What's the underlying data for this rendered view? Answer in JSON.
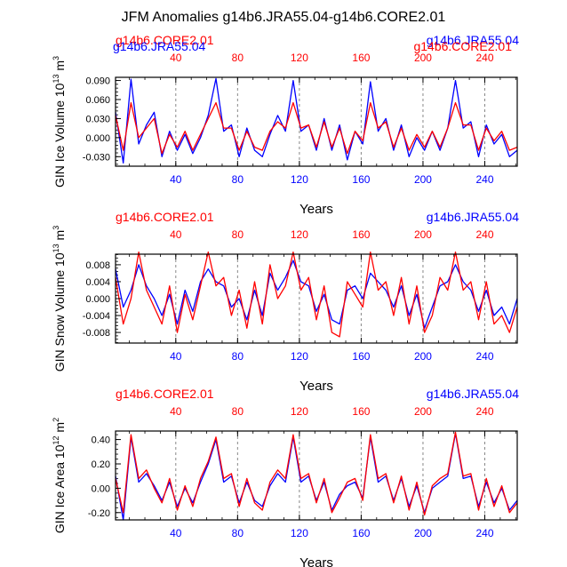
{
  "figure": {
    "title": "JFM Anomalies g14b6.JRA55.04-g14b6.CORE2.01",
    "xlabel": "Years"
  },
  "colors": {
    "jra": "#0000ff",
    "core": "#ff0000",
    "axis": "#000000",
    "grid": "#888888"
  },
  "chart_data": [
    {
      "type": "line",
      "ylabel_main": "GIN Ice Volume 10",
      "ylabel_exp": "13",
      "ylabel_unit": " m",
      "ylabel_unit_exp": "3",
      "xlabel": "Years",
      "legend_left": "g14b6.CORE2.01",
      "legend_right": "g14b6.JRA55.04",
      "legend_left_2": "g14b6.JRA55.04",
      "legend_right_2": "g14b6.CORE2.01",
      "xlim": [
        1,
        261
      ],
      "ylim": [
        -0.045,
        0.095
      ],
      "yticks": [
        -0.03,
        0.0,
        0.03,
        0.06,
        0.09
      ],
      "ytick_labels": [
        "-0.030",
        "0.000",
        "0.030",
        "0.060",
        "0.090"
      ],
      "xticks": [
        40,
        80,
        120,
        160,
        200,
        240
      ],
      "xtick_labels": [
        "40",
        "80",
        "120",
        "160",
        "200",
        "240"
      ],
      "grid": "vertical dashed at x ticks",
      "series": [
        {
          "name": "g14b6.JRA55.04",
          "color": "#0000ff",
          "x": [
            1,
            6,
            11,
            16,
            21,
            26,
            31,
            36,
            41,
            46,
            51,
            56,
            61,
            66,
            71,
            76,
            81,
            86,
            91,
            96,
            101,
            106,
            111,
            116,
            121,
            126,
            131,
            136,
            141,
            146,
            151,
            156,
            161,
            166,
            171,
            176,
            181,
            186,
            191,
            196,
            201,
            206,
            211,
            216,
            221,
            226,
            231,
            236,
            241,
            246,
            251,
            256,
            261
          ],
          "values": [
            0.04,
            -0.04,
            0.092,
            -0.01,
            0.02,
            0.04,
            -0.03,
            0.01,
            -0.02,
            0.005,
            -0.025,
            0.0,
            0.035,
            0.093,
            0.01,
            0.02,
            -0.03,
            0.015,
            -0.02,
            -0.03,
            0.005,
            0.035,
            0.01,
            0.09,
            0.01,
            0.02,
            -0.02,
            0.03,
            -0.02,
            0.02,
            -0.035,
            0.01,
            -0.01,
            0.088,
            0.01,
            0.03,
            -0.02,
            0.02,
            -0.03,
            0.0,
            -0.02,
            0.01,
            -0.02,
            0.015,
            0.09,
            0.015,
            0.025,
            -0.03,
            0.02,
            -0.01,
            0.005,
            -0.03,
            -0.02
          ]
        },
        {
          "name": "g14b6.CORE2.01",
          "color": "#ff0000",
          "x": [
            1,
            6,
            11,
            16,
            21,
            26,
            31,
            36,
            41,
            46,
            51,
            56,
            61,
            66,
            71,
            76,
            81,
            86,
            91,
            96,
            101,
            106,
            111,
            116,
            121,
            126,
            131,
            136,
            141,
            146,
            151,
            156,
            161,
            166,
            171,
            176,
            181,
            186,
            191,
            196,
            201,
            206,
            211,
            216,
            221,
            226,
            231,
            236,
            241,
            246,
            251,
            256,
            261
          ],
          "values": [
            0.035,
            -0.02,
            0.055,
            0.0,
            0.015,
            0.03,
            -0.025,
            0.005,
            -0.015,
            0.01,
            -0.02,
            0.005,
            0.03,
            0.055,
            0.015,
            0.015,
            -0.02,
            0.01,
            -0.015,
            -0.02,
            0.01,
            0.025,
            0.015,
            0.055,
            0.015,
            0.02,
            -0.015,
            0.025,
            -0.015,
            0.015,
            -0.025,
            0.01,
            -0.005,
            0.055,
            0.015,
            0.025,
            -0.015,
            0.015,
            -0.02,
            0.005,
            -0.015,
            0.01,
            -0.015,
            0.015,
            0.055,
            0.02,
            0.02,
            -0.02,
            0.015,
            -0.005,
            0.01,
            -0.02,
            -0.015
          ]
        }
      ]
    },
    {
      "type": "line",
      "ylabel_main": "GIN Snow Volume 10",
      "ylabel_exp": "13",
      "ylabel_unit": " m",
      "ylabel_unit_exp": "3",
      "xlabel": "Years",
      "legend_left": "g14b6.CORE2.01",
      "legend_right": "g14b6.JRA55.04",
      "xlim": [
        1,
        261
      ],
      "ylim": [
        -0.0105,
        0.0105
      ],
      "yticks": [
        -0.008,
        -0.004,
        0.0,
        0.004,
        0.008
      ],
      "ytick_labels": [
        "-0.008",
        "-0.004",
        "0.000",
        "0.004",
        "0.008"
      ],
      "xticks": [
        40,
        80,
        120,
        160,
        200,
        240
      ],
      "xtick_labels": [
        "40",
        "80",
        "120",
        "160",
        "200",
        "240"
      ],
      "grid": "vertical dashed at x ticks",
      "series": [
        {
          "name": "g14b6.JRA55.04",
          "color": "#0000ff",
          "x": [
            1,
            6,
            11,
            16,
            21,
            26,
            31,
            36,
            41,
            46,
            51,
            56,
            61,
            66,
            71,
            76,
            81,
            86,
            91,
            96,
            101,
            106,
            111,
            116,
            121,
            126,
            131,
            136,
            141,
            146,
            151,
            156,
            161,
            166,
            171,
            176,
            181,
            186,
            191,
            196,
            201,
            206,
            211,
            216,
            221,
            226,
            231,
            236,
            241,
            246,
            251,
            256,
            261
          ],
          "values": [
            0.007,
            -0.002,
            0.002,
            0.008,
            0.003,
            0.0,
            -0.004,
            0.001,
            -0.006,
            0.002,
            -0.003,
            0.004,
            0.007,
            0.004,
            0.003,
            -0.002,
            0.0,
            -0.005,
            0.002,
            -0.004,
            0.006,
            0.002,
            0.005,
            0.009,
            0.004,
            0.003,
            -0.003,
            0.001,
            -0.005,
            -0.006,
            0.002,
            0.003,
            0.0,
            0.006,
            0.004,
            0.002,
            -0.002,
            0.003,
            -0.004,
            0.001,
            -0.007,
            -0.002,
            0.003,
            0.004,
            0.008,
            0.004,
            0.002,
            -0.003,
            0.002,
            -0.004,
            -0.002,
            -0.006,
            0.0
          ]
        },
        {
          "name": "g14b6.CORE2.01",
          "color": "#ff0000",
          "x": [
            1,
            6,
            11,
            16,
            21,
            26,
            31,
            36,
            41,
            46,
            51,
            56,
            61,
            66,
            71,
            76,
            81,
            86,
            91,
            96,
            101,
            106,
            111,
            116,
            121,
            126,
            131,
            136,
            141,
            146,
            151,
            156,
            161,
            166,
            171,
            176,
            181,
            186,
            191,
            196,
            201,
            206,
            211,
            216,
            221,
            226,
            231,
            236,
            241,
            246,
            251,
            256,
            261
          ],
          "values": [
            0.005,
            -0.006,
            0.0,
            0.011,
            0.002,
            -0.002,
            -0.006,
            0.003,
            -0.008,
            0.001,
            -0.005,
            0.003,
            0.011,
            0.003,
            0.005,
            -0.004,
            0.002,
            -0.007,
            0.004,
            -0.006,
            0.008,
            0.0,
            0.003,
            0.011,
            0.002,
            0.005,
            -0.005,
            0.003,
            -0.008,
            -0.009,
            0.004,
            0.001,
            -0.002,
            0.011,
            0.002,
            0.004,
            -0.004,
            0.005,
            -0.006,
            0.003,
            -0.008,
            -0.004,
            0.005,
            0.002,
            0.011,
            0.002,
            0.004,
            -0.005,
            0.004,
            -0.006,
            -0.004,
            -0.008,
            -0.002
          ]
        }
      ]
    },
    {
      "type": "line",
      "ylabel_main": "GIN Ice Area 10",
      "ylabel_exp": "12",
      "ylabel_unit": " m",
      "ylabel_unit_exp": "2",
      "xlabel": "Years",
      "legend_left": "g14b6.CORE2.01",
      "legend_right": "g14b6.JRA55.04",
      "xlim": [
        1,
        261
      ],
      "ylim": [
        -0.26,
        0.47
      ],
      "yticks": [
        -0.2,
        0.0,
        0.2,
        0.4
      ],
      "ytick_labels": [
        "-0.20",
        "0.00",
        "0.20",
        "0.40"
      ],
      "xticks": [
        40,
        80,
        120,
        160,
        200,
        240
      ],
      "xtick_labels": [
        "40",
        "80",
        "120",
        "160",
        "200",
        "240"
      ],
      "grid": "vertical dashed at x ticks",
      "series": [
        {
          "name": "g14b6.JRA55.04",
          "color": "#0000ff",
          "x": [
            1,
            6,
            11,
            16,
            21,
            26,
            31,
            36,
            41,
            46,
            51,
            56,
            61,
            66,
            71,
            76,
            81,
            86,
            91,
            96,
            101,
            106,
            111,
            116,
            121,
            126,
            131,
            136,
            141,
            146,
            151,
            156,
            161,
            166,
            171,
            176,
            181,
            186,
            191,
            196,
            201,
            206,
            211,
            216,
            221,
            226,
            231,
            236,
            241,
            246,
            251,
            256,
            261
          ],
          "values": [
            0.1,
            -0.26,
            0.42,
            0.05,
            0.12,
            0.02,
            -0.1,
            0.05,
            -0.15,
            0.0,
            -0.12,
            0.05,
            0.2,
            0.4,
            0.05,
            0.1,
            -0.12,
            0.05,
            -0.1,
            -0.15,
            0.02,
            0.12,
            0.05,
            0.42,
            0.05,
            0.1,
            -0.1,
            0.05,
            -0.18,
            -0.05,
            0.02,
            0.05,
            -0.08,
            0.42,
            0.05,
            0.1,
            -0.1,
            0.08,
            -0.15,
            0.02,
            -0.2,
            0.0,
            0.05,
            0.1,
            0.45,
            0.08,
            0.1,
            -0.15,
            0.05,
            -0.12,
            0.0,
            -0.18,
            -0.1
          ]
        },
        {
          "name": "g14b6.CORE2.01",
          "color": "#ff0000",
          "x": [
            1,
            6,
            11,
            16,
            21,
            26,
            31,
            36,
            41,
            46,
            51,
            56,
            61,
            66,
            71,
            76,
            81,
            86,
            91,
            96,
            101,
            106,
            111,
            116,
            121,
            126,
            131,
            136,
            141,
            146,
            151,
            156,
            161,
            166,
            171,
            176,
            181,
            186,
            191,
            196,
            201,
            206,
            211,
            216,
            221,
            226,
            231,
            236,
            241,
            246,
            251,
            256,
            261
          ],
          "values": [
            0.08,
            -0.2,
            0.44,
            0.08,
            0.15,
            0.0,
            -0.12,
            0.08,
            -0.18,
            0.02,
            -0.15,
            0.08,
            0.22,
            0.42,
            0.08,
            0.12,
            -0.15,
            0.08,
            -0.12,
            -0.18,
            0.05,
            0.15,
            0.08,
            0.44,
            0.08,
            0.12,
            -0.12,
            0.08,
            -0.2,
            -0.08,
            0.05,
            0.08,
            -0.1,
            0.44,
            0.08,
            0.12,
            -0.12,
            0.1,
            -0.18,
            0.05,
            -0.22,
            0.02,
            0.08,
            0.12,
            0.46,
            0.1,
            0.12,
            -0.18,
            0.08,
            -0.15,
            0.02,
            -0.2,
            -0.12
          ]
        }
      ]
    }
  ]
}
